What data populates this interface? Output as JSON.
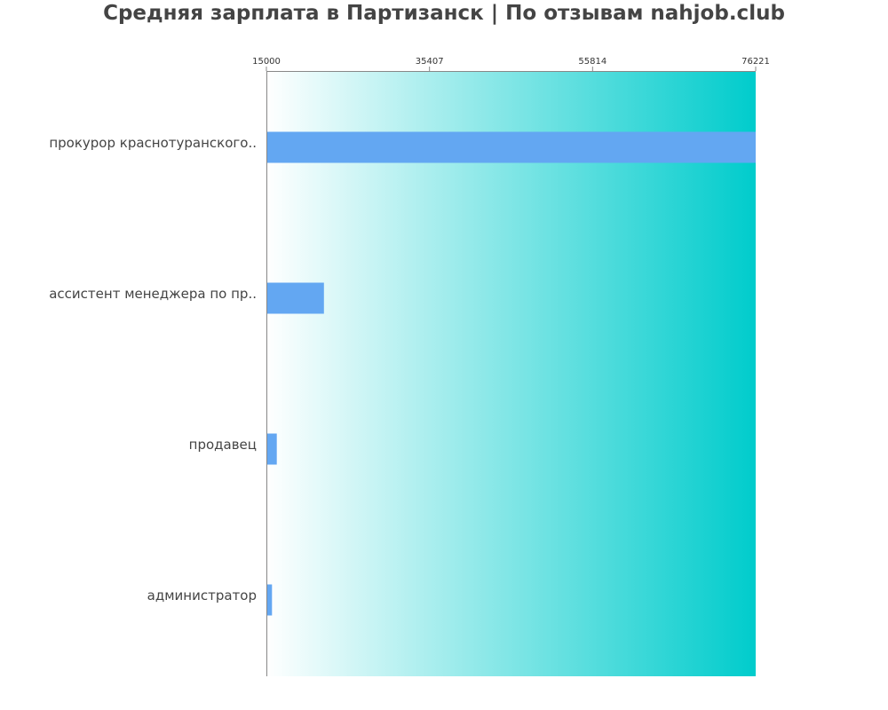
{
  "colors": {
    "bar": "#63a7f2",
    "gradient_start": "#ffffff",
    "gradient_end": "#00cccc",
    "axis": "#888888",
    "title": "#444444",
    "label": "#444444"
  },
  "chart_data": {
    "type": "bar",
    "orientation": "horizontal",
    "title": "Средняя зарплата в Партизанск | По отзывам nahjob.club",
    "categories": [
      "прокурор краснотуранского..",
      "ассистент менеджера по пр..",
      "продавец",
      "администратор"
    ],
    "values": [
      76221,
      22200,
      16300,
      15700
    ],
    "xlim": [
      15000,
      76221
    ],
    "xticks": [
      15000,
      35407,
      55814,
      76221
    ],
    "xtick_position": "top",
    "grid": false,
    "background": "horizontal gradient white to cyan"
  }
}
